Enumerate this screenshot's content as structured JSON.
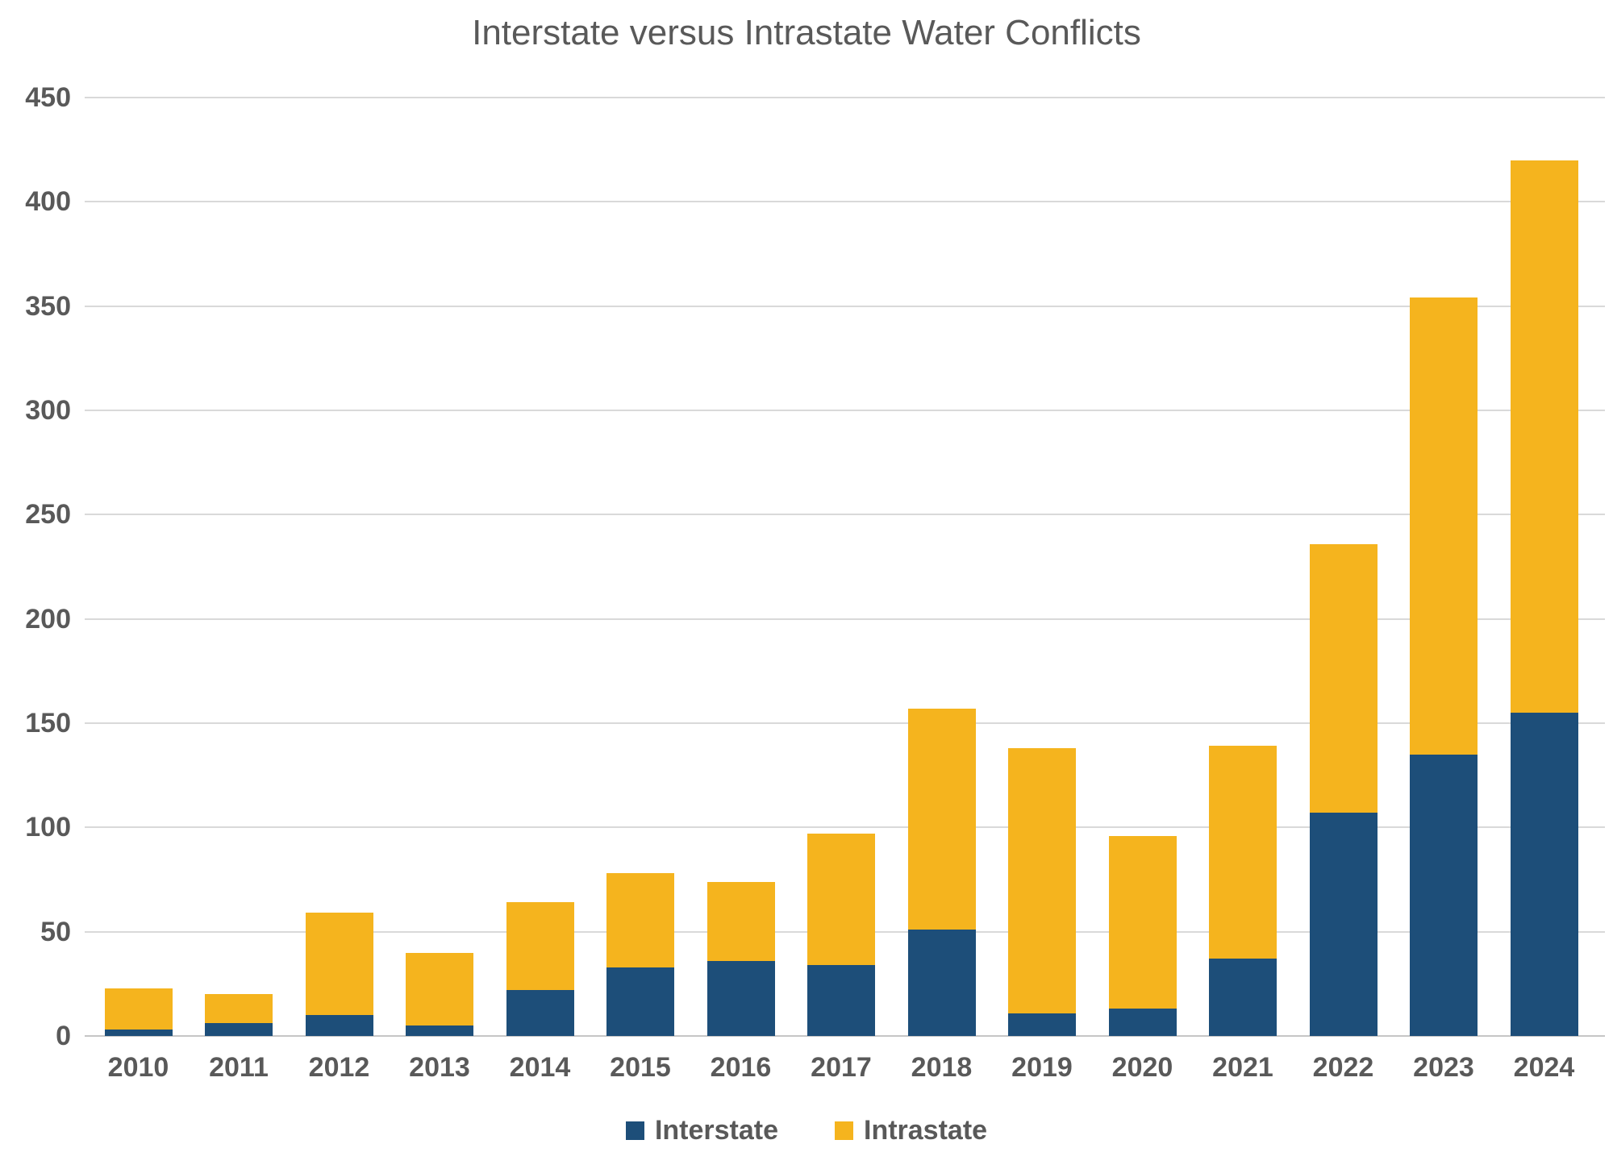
{
  "title": "Interstate versus Intrastate Water Conflicts",
  "colors": {
    "interstate": "#1d4e79",
    "intrastate": "#f5b41e",
    "gridline": "#d9d9d9",
    "axis_line": "#c6c6c6",
    "text": "#595959",
    "background": "#ffffff"
  },
  "legend": {
    "items": [
      {
        "label": "Interstate",
        "color": "#1d4e79"
      },
      {
        "label": "Intrastate",
        "color": "#f5b41e"
      }
    ]
  },
  "chart_data": {
    "type": "bar",
    "stacked": true,
    "title": "Interstate versus Intrastate Water Conflicts",
    "xlabel": "",
    "ylabel": "",
    "categories": [
      "2010",
      "2011",
      "2012",
      "2013",
      "2014",
      "2015",
      "2016",
      "2017",
      "2018",
      "2019",
      "2020",
      "2021",
      "2022",
      "2023",
      "2024"
    ],
    "series": [
      {
        "name": "Interstate",
        "color": "#1d4e79",
        "values": [
          3,
          6,
          10,
          5,
          22,
          33,
          36,
          34,
          51,
          11,
          13,
          37,
          107,
          135,
          155
        ]
      },
      {
        "name": "Intrastate",
        "color": "#f5b41e",
        "values": [
          20,
          14,
          49,
          35,
          42,
          45,
          38,
          63,
          106,
          127,
          83,
          102,
          129,
          219,
          265
        ]
      }
    ],
    "totals": [
      23,
      20,
      59,
      40,
      64,
      78,
      74,
      97,
      157,
      138,
      96,
      139,
      236,
      354,
      420
    ],
    "ylim": [
      0,
      450
    ],
    "ytick_step": 50,
    "yticks": [
      "0",
      "50",
      "100",
      "150",
      "200",
      "250",
      "300",
      "350",
      "400",
      "450"
    ],
    "grid": true,
    "legend_position": "bottom"
  }
}
